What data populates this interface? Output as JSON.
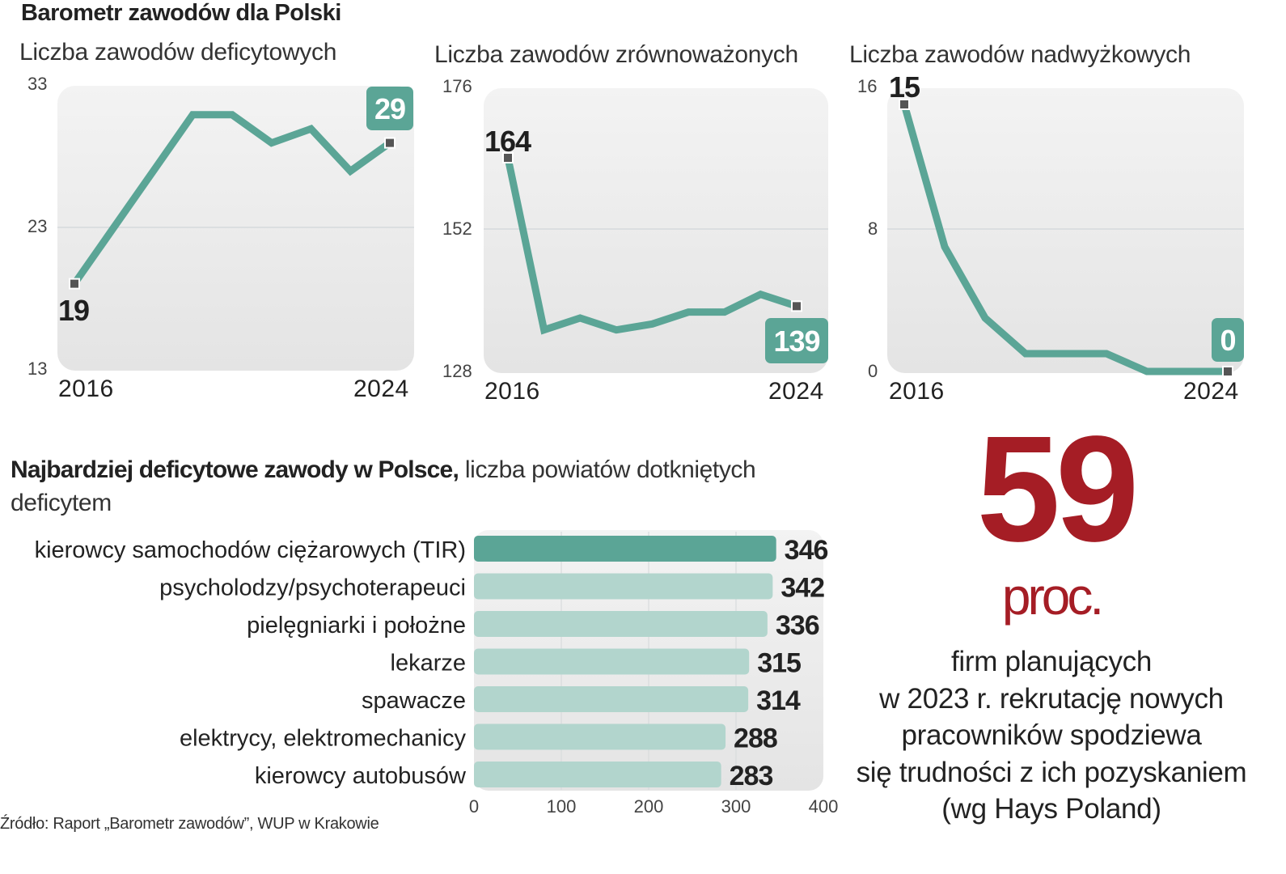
{
  "header": {
    "title": "Barometr zawodów dla Polski"
  },
  "chart_data": [
    {
      "type": "line",
      "title": "Liczba zawodów deficytowych",
      "x": [
        2016,
        2017,
        2018,
        2019,
        2020,
        2021,
        2022,
        2023,
        2024
      ],
      "values": [
        19,
        23,
        27,
        31,
        31,
        29,
        30,
        27,
        29
      ],
      "ylim": [
        13,
        33
      ],
      "yticks": [
        "33",
        "23",
        "13"
      ],
      "xticks": [
        "2016",
        "2024"
      ],
      "start_label": "19",
      "end_label": "29",
      "grid": true,
      "color": "#5ba596"
    },
    {
      "type": "line",
      "title": "Liczba zawodów zrównoważonych",
      "x": [
        2016,
        2017,
        2018,
        2019,
        2020,
        2021,
        2022,
        2023,
        2024
      ],
      "values": [
        164,
        135,
        137,
        135,
        136,
        138,
        138,
        141,
        139
      ],
      "ylim": [
        128,
        176
      ],
      "yticks": [
        "176",
        "152",
        "128"
      ],
      "xticks": [
        "2016",
        "2024"
      ],
      "start_label": "164",
      "end_label": "139",
      "grid": true,
      "color": "#5ba596"
    },
    {
      "type": "line",
      "title": "Liczba zawodów nadwyżkowych",
      "x": [
        2016,
        2017,
        2018,
        2019,
        2020,
        2021,
        2022,
        2023,
        2024
      ],
      "values": [
        15,
        7,
        3,
        1,
        1,
        1,
        0,
        0,
        0
      ],
      "ylim": [
        0,
        16
      ],
      "yticks": [
        "16",
        "8",
        "0"
      ],
      "xticks": [
        "2016",
        "2024"
      ],
      "start_label": "15",
      "end_label": "0",
      "grid": true,
      "color": "#5ba596"
    },
    {
      "type": "bar",
      "orientation": "horizontal",
      "title": "Najbardziej deficytowe zawody w Polsce,",
      "subtitle": "liczba powiatów dotkniętych deficytem",
      "categories": [
        "kierowcy samochodów ciężarowych (TIR)",
        "psycholodzy/psychoterapeuci",
        "pielęgniarki i położne",
        "lekarze",
        "spawacze",
        "elektrycy, elektromechanicy",
        "kierowcy autobusów"
      ],
      "values": [
        346,
        342,
        336,
        315,
        314,
        288,
        283
      ],
      "value_labels": [
        "346",
        "342",
        "336",
        "315",
        "314",
        "288",
        "283"
      ],
      "xlim": [
        0,
        400
      ],
      "xticks": [
        "0",
        "100",
        "200",
        "300",
        "400"
      ],
      "grid": true,
      "highlight_color": "#5ba596",
      "bar_color": "#b2d5cd"
    }
  ],
  "callout": {
    "number": "59",
    "unit": "proc.",
    "text_lines": [
      "firm planujących",
      "w 2023 r. rekrutację nowych",
      "pracowników spodziewa",
      "się trudności z ich pozyskaniem",
      "(wg Hays Poland)"
    ],
    "accent_color": "#a51d25"
  },
  "source": "Źródło: Raport „Barometr zawodów”, WUP w Krakowie"
}
